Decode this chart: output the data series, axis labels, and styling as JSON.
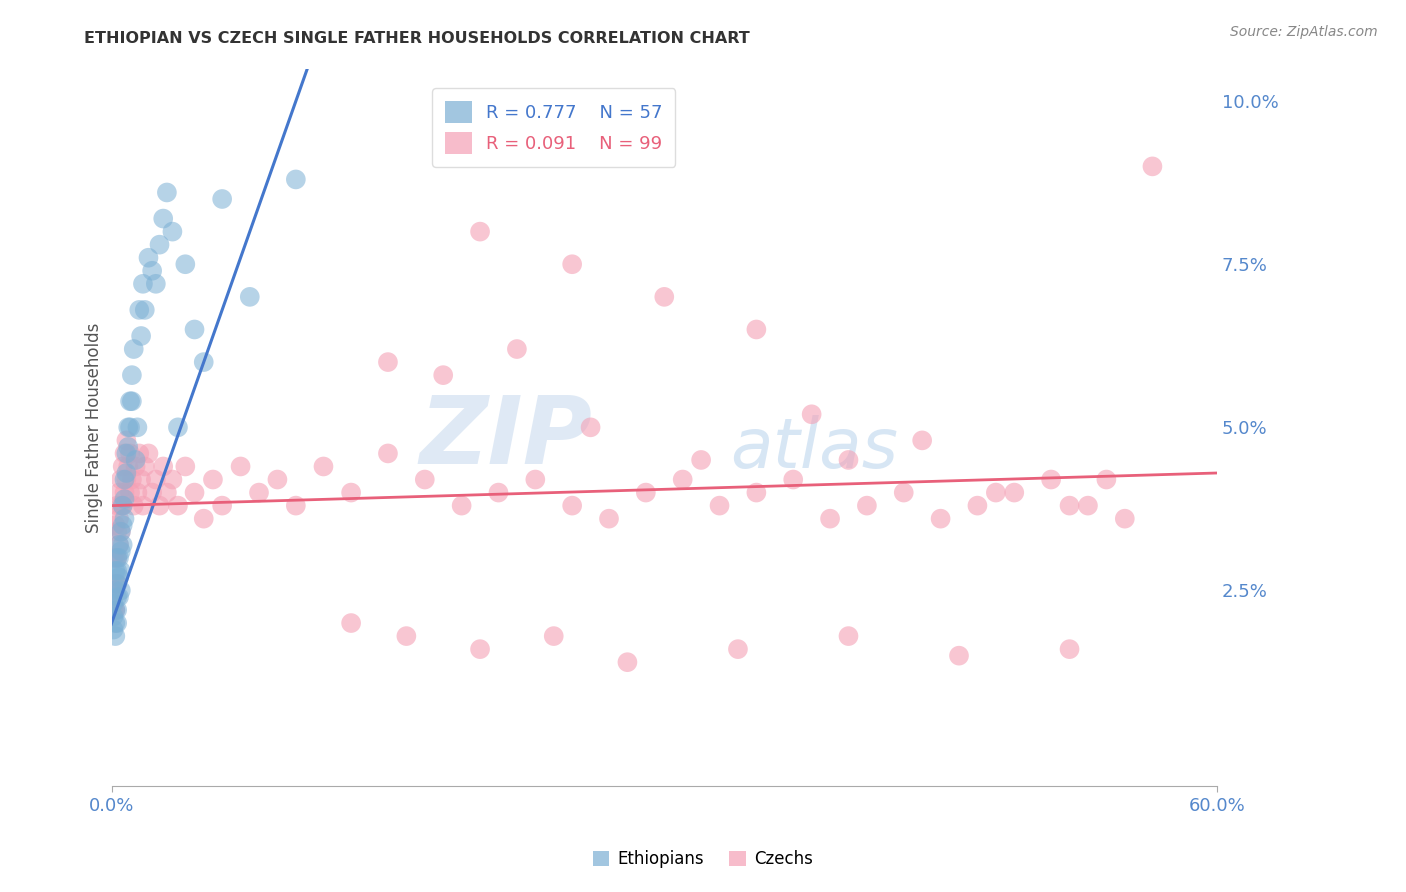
{
  "title": "ETHIOPIAN VS CZECH SINGLE FATHER HOUSEHOLDS CORRELATION CHART",
  "source": "Source: ZipAtlas.com",
  "ylabel": "Single Father Households",
  "xlim": [
    0.0,
    0.6
  ],
  "ylim": [
    -0.005,
    0.105
  ],
  "yticks": [
    0.025,
    0.05,
    0.075,
    0.1
  ],
  "ytick_labels": [
    "2.5%",
    "5.0%",
    "7.5%",
    "10.0%"
  ],
  "xtick_labels": [
    "0.0%",
    "60.0%"
  ],
  "xticks": [
    0.0,
    0.6
  ],
  "ethiopians_color": "#7BAFD4",
  "czechs_color": "#F4A0B5",
  "eth_line_color": "#4477CC",
  "czk_line_color": "#E8607A",
  "ethiopians_R": 0.777,
  "ethiopians_N": 57,
  "czechs_R": 0.091,
  "czechs_N": 99,
  "background_color": "#FFFFFF",
  "grid_color": "#CCCCCC",
  "axis_label_color": "#5588CC",
  "title_color": "#333333",
  "watermark_text": "ZIP",
  "watermark_text2": "atlas",
  "eth_x": [
    0.001,
    0.001,
    0.001,
    0.002,
    0.002,
    0.002,
    0.002,
    0.002,
    0.003,
    0.003,
    0.003,
    0.003,
    0.003,
    0.003,
    0.004,
    0.004,
    0.004,
    0.004,
    0.005,
    0.005,
    0.005,
    0.005,
    0.006,
    0.006,
    0.006,
    0.007,
    0.007,
    0.007,
    0.008,
    0.008,
    0.009,
    0.009,
    0.01,
    0.01,
    0.011,
    0.011,
    0.012,
    0.013,
    0.014,
    0.015,
    0.016,
    0.017,
    0.018,
    0.02,
    0.022,
    0.024,
    0.026,
    0.028,
    0.03,
    0.033,
    0.036,
    0.04,
    0.045,
    0.05,
    0.06,
    0.075,
    0.1
  ],
  "eth_y": [
    0.023,
    0.021,
    0.019,
    0.028,
    0.025,
    0.022,
    0.02,
    0.018,
    0.03,
    0.028,
    0.026,
    0.024,
    0.022,
    0.02,
    0.032,
    0.03,
    0.027,
    0.024,
    0.034,
    0.031,
    0.028,
    0.025,
    0.038,
    0.035,
    0.032,
    0.042,
    0.039,
    0.036,
    0.046,
    0.043,
    0.05,
    0.047,
    0.054,
    0.05,
    0.058,
    0.054,
    0.062,
    0.045,
    0.05,
    0.068,
    0.064,
    0.072,
    0.068,
    0.076,
    0.074,
    0.072,
    0.078,
    0.082,
    0.086,
    0.08,
    0.05,
    0.075,
    0.065,
    0.06,
    0.085,
    0.07,
    0.088
  ],
  "czk_x": [
    0.001,
    0.001,
    0.001,
    0.002,
    0.002,
    0.002,
    0.002,
    0.003,
    0.003,
    0.003,
    0.003,
    0.004,
    0.004,
    0.004,
    0.005,
    0.005,
    0.005,
    0.006,
    0.006,
    0.007,
    0.007,
    0.008,
    0.008,
    0.009,
    0.01,
    0.01,
    0.011,
    0.012,
    0.013,
    0.014,
    0.015,
    0.016,
    0.017,
    0.018,
    0.02,
    0.022,
    0.024,
    0.026,
    0.028,
    0.03,
    0.033,
    0.036,
    0.04,
    0.045,
    0.05,
    0.055,
    0.06,
    0.07,
    0.08,
    0.09,
    0.1,
    0.115,
    0.13,
    0.15,
    0.17,
    0.19,
    0.21,
    0.23,
    0.25,
    0.27,
    0.29,
    0.31,
    0.33,
    0.35,
    0.37,
    0.39,
    0.41,
    0.43,
    0.45,
    0.47,
    0.49,
    0.51,
    0.53,
    0.55,
    0.565,
    0.2,
    0.25,
    0.3,
    0.35,
    0.4,
    0.15,
    0.18,
    0.22,
    0.26,
    0.32,
    0.38,
    0.44,
    0.48,
    0.52,
    0.54,
    0.13,
    0.16,
    0.2,
    0.24,
    0.28,
    0.34,
    0.4,
    0.46,
    0.52
  ],
  "czk_y": [
    0.03,
    0.025,
    0.022,
    0.035,
    0.03,
    0.026,
    0.022,
    0.038,
    0.034,
    0.03,
    0.026,
    0.04,
    0.036,
    0.032,
    0.042,
    0.038,
    0.034,
    0.044,
    0.038,
    0.046,
    0.04,
    0.048,
    0.042,
    0.044,
    0.046,
    0.04,
    0.042,
    0.038,
    0.044,
    0.04,
    0.046,
    0.042,
    0.038,
    0.044,
    0.046,
    0.04,
    0.042,
    0.038,
    0.044,
    0.04,
    0.042,
    0.038,
    0.044,
    0.04,
    0.036,
    0.042,
    0.038,
    0.044,
    0.04,
    0.042,
    0.038,
    0.044,
    0.04,
    0.046,
    0.042,
    0.038,
    0.04,
    0.042,
    0.038,
    0.036,
    0.04,
    0.042,
    0.038,
    0.04,
    0.042,
    0.036,
    0.038,
    0.04,
    0.036,
    0.038,
    0.04,
    0.042,
    0.038,
    0.036,
    0.09,
    0.08,
    0.075,
    0.07,
    0.065,
    0.045,
    0.06,
    0.058,
    0.062,
    0.05,
    0.045,
    0.052,
    0.048,
    0.04,
    0.038,
    0.042,
    0.02,
    0.018,
    0.016,
    0.018,
    0.014,
    0.016,
    0.018,
    0.015,
    0.016
  ]
}
